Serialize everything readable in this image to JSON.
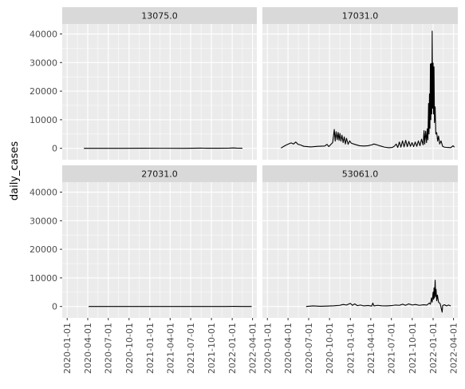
{
  "chart_data": {
    "type": "line",
    "facet_by": "fips",
    "xlabel": "",
    "ylabel": "daily_cases",
    "x_axis": {
      "type": "date",
      "range": [
        "2019-12-10",
        "2022-04-20"
      ],
      "ticks": [
        "2020-01-01",
        "2020-04-01",
        "2020-07-01",
        "2020-10-01",
        "2021-01-01",
        "2021-04-01",
        "2021-07-01",
        "2021-10-01",
        "2022-01-01",
        "2022-04-01"
      ]
    },
    "y_axis": {
      "range": [
        -4000,
        43500
      ],
      "ticks": [
        0,
        10000,
        20000,
        30000,
        40000
      ],
      "tick_labels": [
        "0",
        "10000",
        "20000",
        "30000",
        "40000"
      ]
    },
    "grid": true,
    "panel_background": "#ebebeb",
    "strip_background": "#d9d9d9",
    "line_color": "#000000",
    "panels": [
      {
        "label": "13075.0",
        "points": [
          [
            "2020-03-15",
            0
          ],
          [
            "2020-06-01",
            5
          ],
          [
            "2020-09-01",
            10
          ],
          [
            "2020-12-01",
            20
          ],
          [
            "2021-03-01",
            15
          ],
          [
            "2021-06-01",
            5
          ],
          [
            "2021-08-15",
            60
          ],
          [
            "2021-09-15",
            40
          ],
          [
            "2021-11-01",
            20
          ],
          [
            "2021-12-20",
            80
          ],
          [
            "2022-01-05",
            150
          ],
          [
            "2022-01-20",
            60
          ],
          [
            "2022-02-15",
            20
          ]
        ]
      },
      {
        "label": "17031.0",
        "points": [
          [
            "2020-03-01",
            100
          ],
          [
            "2020-03-20",
            1000
          ],
          [
            "2020-04-05",
            1600
          ],
          [
            "2020-04-15",
            1900
          ],
          [
            "2020-04-25",
            1500
          ],
          [
            "2020-05-05",
            2200
          ],
          [
            "2020-05-15",
            1400
          ],
          [
            "2020-05-25",
            1200
          ],
          [
            "2020-06-10",
            700
          ],
          [
            "2020-07-10",
            500
          ],
          [
            "2020-08-10",
            700
          ],
          [
            "2020-09-10",
            800
          ],
          [
            "2020-09-20",
            1400
          ],
          [
            "2020-09-28",
            600
          ],
          [
            "2020-10-05",
            1200
          ],
          [
            "2020-10-15",
            2000
          ],
          [
            "2020-10-22",
            6600
          ],
          [
            "2020-10-26",
            2500
          ],
          [
            "2020-10-30",
            5800
          ],
          [
            "2020-11-04",
            3000
          ],
          [
            "2020-11-08",
            5600
          ],
          [
            "2020-11-12",
            2800
          ],
          [
            "2020-11-16",
            5200
          ],
          [
            "2020-11-20",
            2500
          ],
          [
            "2020-11-25",
            4600
          ],
          [
            "2020-11-30",
            2000
          ],
          [
            "2020-12-05",
            4000
          ],
          [
            "2020-12-10",
            1500
          ],
          [
            "2020-12-15",
            3500
          ],
          [
            "2020-12-22",
            1400
          ],
          [
            "2020-12-29",
            2600
          ],
          [
            "2021-01-05",
            1800
          ],
          [
            "2021-01-20",
            1400
          ],
          [
            "2021-02-10",
            900
          ],
          [
            "2021-03-01",
            800
          ],
          [
            "2021-03-20",
            900
          ],
          [
            "2021-04-05",
            1200
          ],
          [
            "2021-04-15",
            1500
          ],
          [
            "2021-04-25",
            1300
          ],
          [
            "2021-05-10",
            900
          ],
          [
            "2021-06-01",
            400
          ],
          [
            "2021-06-20",
            200
          ],
          [
            "2021-07-05",
            300
          ],
          [
            "2021-07-15",
            800
          ],
          [
            "2021-07-22",
            1500
          ],
          [
            "2021-07-29",
            300
          ],
          [
            "2021-08-05",
            2200
          ],
          [
            "2021-08-12",
            400
          ],
          [
            "2021-08-19",
            2600
          ],
          [
            "2021-08-26",
            500
          ],
          [
            "2021-09-02",
            2800
          ],
          [
            "2021-09-09",
            600
          ],
          [
            "2021-09-16",
            2400
          ],
          [
            "2021-09-23",
            700
          ],
          [
            "2021-09-30",
            2000
          ],
          [
            "2021-10-07",
            600
          ],
          [
            "2021-10-14",
            2200
          ],
          [
            "2021-10-21",
            700
          ],
          [
            "2021-10-28",
            2600
          ],
          [
            "2021-11-04",
            900
          ],
          [
            "2021-11-11",
            3200
          ],
          [
            "2021-11-18",
            1200
          ],
          [
            "2021-11-22",
            6200
          ],
          [
            "2021-11-25",
            1500
          ],
          [
            "2021-11-29",
            6000
          ],
          [
            "2021-12-03",
            2000
          ],
          [
            "2021-12-06",
            6800
          ],
          [
            "2021-12-09",
            3000
          ],
          [
            "2021-12-12",
            15700
          ],
          [
            "2021-12-14",
            5000
          ],
          [
            "2021-12-16",
            19000
          ],
          [
            "2021-12-18",
            7000
          ],
          [
            "2021-12-20",
            29500
          ],
          [
            "2021-12-22",
            10000
          ],
          [
            "2021-12-24",
            29700
          ],
          [
            "2021-12-26",
            12000
          ],
          [
            "2021-12-28",
            41000
          ],
          [
            "2021-12-30",
            14000
          ],
          [
            "2022-01-01",
            29800
          ],
          [
            "2022-01-03",
            12000
          ],
          [
            "2022-01-05",
            28500
          ],
          [
            "2022-01-07",
            9000
          ],
          [
            "2022-01-10",
            14500
          ],
          [
            "2022-01-13",
            5000
          ],
          [
            "2022-01-17",
            5500
          ],
          [
            "2022-01-21",
            2500
          ],
          [
            "2022-01-25",
            4300
          ],
          [
            "2022-01-30",
            1500
          ],
          [
            "2022-02-05",
            2600
          ],
          [
            "2022-02-12",
            700
          ],
          [
            "2022-02-20",
            400
          ],
          [
            "2022-03-05",
            300
          ],
          [
            "2022-03-20",
            250
          ],
          [
            "2022-03-30",
            900
          ],
          [
            "2022-04-05",
            400
          ]
        ]
      },
      {
        "label": "27031.0",
        "points": [
          [
            "2020-04-05",
            0
          ],
          [
            "2020-07-01",
            3
          ],
          [
            "2020-10-01",
            8
          ],
          [
            "2020-12-01",
            12
          ],
          [
            "2021-03-01",
            6
          ],
          [
            "2021-06-01",
            3
          ],
          [
            "2021-09-01",
            5
          ],
          [
            "2021-12-01",
            10
          ],
          [
            "2022-01-10",
            20
          ],
          [
            "2022-02-15",
            4
          ],
          [
            "2022-03-28",
            0
          ]
        ]
      },
      {
        "label": "53061.0",
        "points": [
          [
            "2020-06-20",
            0
          ],
          [
            "2020-07-20",
            200
          ],
          [
            "2020-08-20",
            80
          ],
          [
            "2020-09-20",
            150
          ],
          [
            "2020-10-20",
            250
          ],
          [
            "2020-11-15",
            400
          ],
          [
            "2020-11-30",
            700
          ],
          [
            "2020-12-15",
            500
          ],
          [
            "2021-01-01",
            1100
          ],
          [
            "2021-01-10",
            400
          ],
          [
            "2021-01-20",
            900
          ],
          [
            "2021-02-01",
            300
          ],
          [
            "2021-02-15",
            500
          ],
          [
            "2021-03-01",
            200
          ],
          [
            "2021-03-20",
            350
          ],
          [
            "2021-04-05",
            150
          ],
          [
            "2021-04-10",
            1200
          ],
          [
            "2021-04-15",
            200
          ],
          [
            "2021-05-01",
            400
          ],
          [
            "2021-05-20",
            250
          ],
          [
            "2021-06-10",
            200
          ],
          [
            "2021-07-01",
            300
          ],
          [
            "2021-07-20",
            500
          ],
          [
            "2021-08-05",
            400
          ],
          [
            "2021-08-20",
            800
          ],
          [
            "2021-09-01",
            400
          ],
          [
            "2021-09-15",
            900
          ],
          [
            "2021-10-01",
            500
          ],
          [
            "2021-10-15",
            700
          ],
          [
            "2021-11-01",
            400
          ],
          [
            "2021-11-20",
            600
          ],
          [
            "2021-12-05",
            500
          ],
          [
            "2021-12-15",
            1200
          ],
          [
            "2021-12-20",
            800
          ],
          [
            "2021-12-25",
            3000
          ],
          [
            "2021-12-28",
            1500
          ],
          [
            "2022-01-01",
            5000
          ],
          [
            "2022-01-03",
            2500
          ],
          [
            "2022-01-05",
            6500
          ],
          [
            "2022-01-07",
            3000
          ],
          [
            "2022-01-10",
            9200
          ],
          [
            "2022-01-12",
            3500
          ],
          [
            "2022-01-14",
            6000
          ],
          [
            "2022-01-17",
            2000
          ],
          [
            "2022-01-20",
            4000
          ],
          [
            "2022-01-25",
            1500
          ],
          [
            "2022-02-01",
            1000
          ],
          [
            "2022-02-10",
            -2000
          ],
          [
            "2022-02-12",
            300
          ],
          [
            "2022-02-20",
            600
          ],
          [
            "2022-03-01",
            200
          ],
          [
            "2022-03-10",
            500
          ],
          [
            "2022-03-20",
            200
          ]
        ]
      }
    ]
  }
}
